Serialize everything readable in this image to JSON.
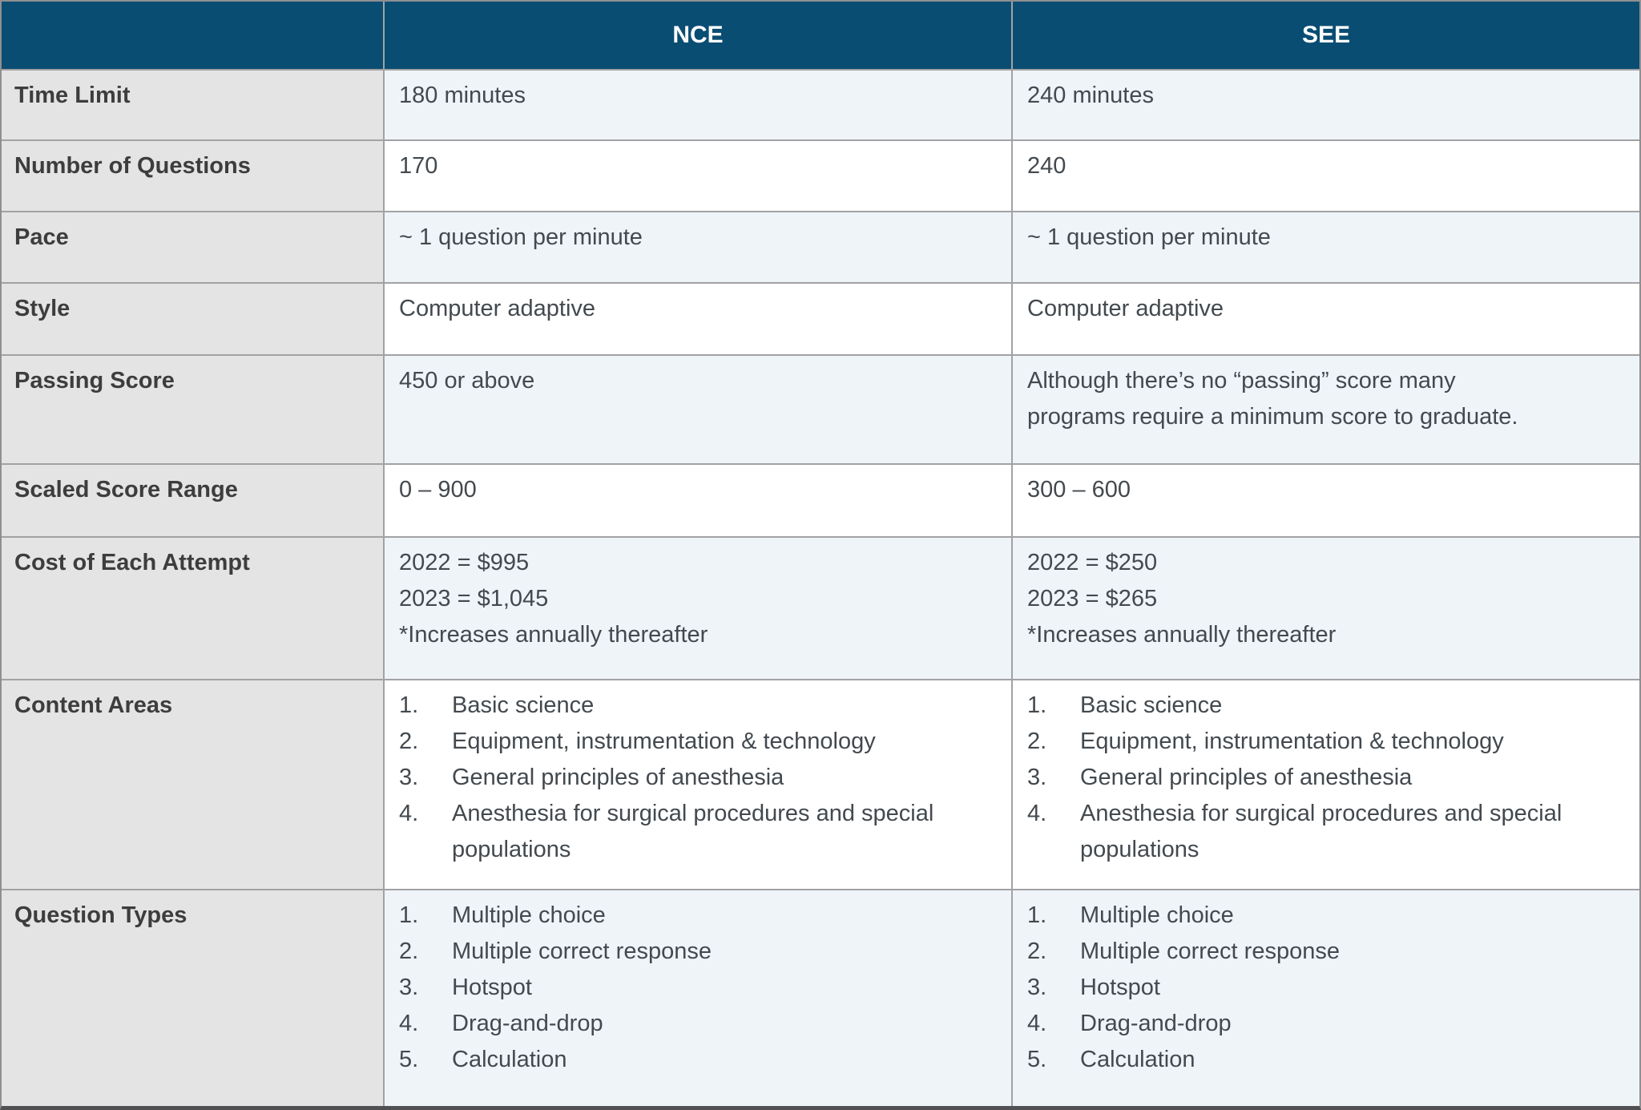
{
  "colors": {
    "header_bg": "#0a4d73",
    "label_column_bg": "#e4e4e4",
    "row_alt_bg": "#eff4f9",
    "grid_border": "#a2a2a5"
  },
  "header": {
    "col_label": "",
    "nce": "NCE",
    "see": "SEE"
  },
  "rows": [
    {
      "label": "Time Limit",
      "nce": "180 minutes",
      "see": "240 minutes"
    },
    {
      "label": "Number of Questions",
      "nce": "170",
      "see": "240"
    },
    {
      "label": "Pace",
      "nce": "~ 1 question per minute",
      "see": "~ 1 question per minute"
    },
    {
      "label": "Style",
      "nce": "Computer adaptive",
      "see": "Computer adaptive"
    },
    {
      "label": "Passing Score",
      "nce": "450 or above",
      "see_lines": [
        "Although there’s no “passing” score many",
        "programs require a minimum score to graduate."
      ]
    },
    {
      "label": "Scaled Score Range",
      "nce": "0 – 900",
      "see": "300 – 600"
    },
    {
      "label": "Cost of Each Attempt",
      "nce_lines": [
        "2022 = $995",
        "2023 = $1,045",
        "*Increases annually thereafter"
      ],
      "see_lines": [
        "2022 = $250",
        "2023 = $265",
        "*Increases annually thereafter"
      ]
    },
    {
      "label": "Content Areas",
      "nce_list": [
        "Basic science",
        "Equipment, instrumentation & technology",
        "General principles of anesthesia",
        "Anesthesia for surgical procedures and special populations"
      ],
      "see_list": [
        "Basic science",
        "Equipment, instrumentation & technology",
        "General principles of anesthesia",
        "Anesthesia for surgical procedures and special populations"
      ]
    },
    {
      "label": "Question Types",
      "nce_list": [
        "Multiple choice",
        "Multiple correct response",
        "Hotspot",
        "Drag-and-drop",
        "Calculation"
      ],
      "see_list": [
        "Multiple choice",
        "Multiple correct response",
        "Hotspot",
        "Drag-and-drop",
        "Calculation"
      ]
    }
  ]
}
